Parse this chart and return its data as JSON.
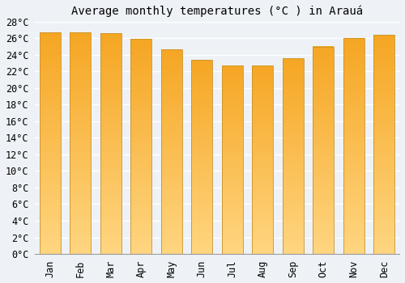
{
  "months": [
    "Jan",
    "Feb",
    "Mar",
    "Apr",
    "May",
    "Jun",
    "Jul",
    "Aug",
    "Sep",
    "Oct",
    "Nov",
    "Dec"
  ],
  "values": [
    26.7,
    26.7,
    26.6,
    25.9,
    24.7,
    23.4,
    22.7,
    22.7,
    23.6,
    25.0,
    26.0,
    26.4
  ],
  "bar_color_top": "#F5A623",
  "bar_color_bottom": "#FFD580",
  "bar_edge_color": "#C8922A",
  "title": "Average monthly temperatures (°C ) in Arauá",
  "ylim": [
    0,
    28
  ],
  "ytick_step": 2,
  "background_color": "#eef2f7",
  "plot_bg_color": "#eef2f7",
  "grid_color": "#ffffff",
  "title_fontsize": 10,
  "tick_fontsize": 8.5
}
